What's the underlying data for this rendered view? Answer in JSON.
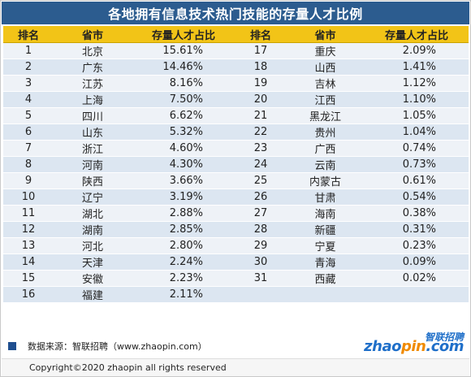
{
  "title": "各地拥有信息技术热门技能的存量人才比例",
  "headers": [
    "排名",
    "省市",
    "存量人才占比",
    "排名",
    "省市",
    "存量人才占比"
  ],
  "chart_data": {
    "type": "table",
    "title": "各地拥有信息技术热门技能的存量人才比例",
    "columns": [
      "排名",
      "省市",
      "存量人才占比"
    ],
    "rows": [
      {
        "rank": "1",
        "region": "北京",
        "share": "15.61%"
      },
      {
        "rank": "2",
        "region": "广东",
        "share": "14.46%"
      },
      {
        "rank": "3",
        "region": "江苏",
        "share": "8.16%"
      },
      {
        "rank": "4",
        "region": "上海",
        "share": "7.50%"
      },
      {
        "rank": "5",
        "region": "四川",
        "share": "6.62%"
      },
      {
        "rank": "6",
        "region": "山东",
        "share": "5.32%"
      },
      {
        "rank": "7",
        "region": "浙江",
        "share": "4.60%"
      },
      {
        "rank": "8",
        "region": "河南",
        "share": "4.30%"
      },
      {
        "rank": "9",
        "region": "陕西",
        "share": "3.66%"
      },
      {
        "rank": "10",
        "region": "辽宁",
        "share": "3.19%"
      },
      {
        "rank": "11",
        "region": "湖北",
        "share": "2.88%"
      },
      {
        "rank": "12",
        "region": "湖南",
        "share": "2.85%"
      },
      {
        "rank": "13",
        "region": "河北",
        "share": "2.80%"
      },
      {
        "rank": "14",
        "region": "天津",
        "share": "2.24%"
      },
      {
        "rank": "15",
        "region": "安徽",
        "share": "2.23%"
      },
      {
        "rank": "16",
        "region": "福建",
        "share": "2.11%"
      },
      {
        "rank": "17",
        "region": "重庆",
        "share": "2.09%"
      },
      {
        "rank": "18",
        "region": "山西",
        "share": "1.41%"
      },
      {
        "rank": "19",
        "region": "吉林",
        "share": "1.12%"
      },
      {
        "rank": "20",
        "region": "江西",
        "share": "1.10%"
      },
      {
        "rank": "21",
        "region": "黑龙江",
        "share": "1.05%"
      },
      {
        "rank": "22",
        "region": "贵州",
        "share": "1.04%"
      },
      {
        "rank": "23",
        "region": "广西",
        "share": "0.74%"
      },
      {
        "rank": "24",
        "region": "云南",
        "share": "0.73%"
      },
      {
        "rank": "25",
        "region": "内蒙古",
        "share": "0.61%"
      },
      {
        "rank": "26",
        "region": "甘肃",
        "share": "0.54%"
      },
      {
        "rank": "27",
        "region": "海南",
        "share": "0.38%"
      },
      {
        "rank": "28",
        "region": "新疆",
        "share": "0.31%"
      },
      {
        "rank": "29",
        "region": "宁夏",
        "share": "0.23%"
      },
      {
        "rank": "30",
        "region": "青海",
        "share": "0.09%"
      },
      {
        "rank": "31",
        "region": "西藏",
        "share": "0.02%"
      }
    ]
  },
  "footer": {
    "source": "数据来源：智联招聘（www.zhaopin.com）",
    "copyright": "Copyright©2020 zhaopin all rights reserved"
  },
  "logo": {
    "cn": "智联招聘",
    "en_a": "zhao",
    "en_b": "pin",
    "en_c": ".com"
  },
  "colors": {
    "title_bg": "#2c5c8f",
    "header_bg": "#f2c417",
    "row_light": "#eef2f7",
    "row_dark": "#dce6f1",
    "accent": "#1f4f8f"
  }
}
